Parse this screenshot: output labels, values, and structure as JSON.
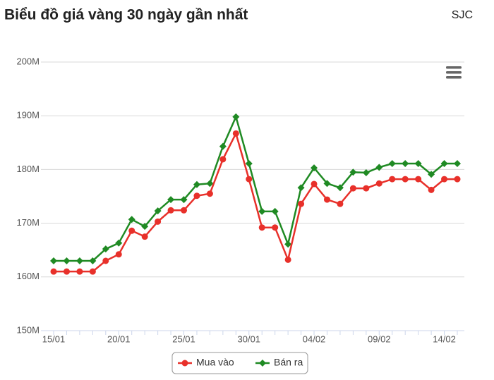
{
  "chart_data": {
    "type": "line",
    "title": "Biểu đồ giá vàng 30 ngày gần nhất",
    "subtitle": "SJC",
    "categories": [
      "15/01",
      null,
      null,
      null,
      null,
      "20/01",
      null,
      null,
      null,
      null,
      "25/01",
      null,
      null,
      null,
      null,
      "30/01",
      null,
      null,
      null,
      null,
      "04/02",
      null,
      null,
      null,
      null,
      "09/02",
      null,
      null,
      null,
      null,
      "14/02",
      null
    ],
    "series": [
      {
        "name": "Mua vào",
        "color": "#e8302a",
        "marker": "circle",
        "values": [
          161,
          161,
          161,
          161,
          163,
          164.2,
          168.6,
          167.5,
          170.3,
          172.4,
          172.4,
          175.1,
          175.5,
          181.9,
          186.7,
          178.2,
          169.2,
          169.2,
          163.2,
          173.6,
          177.3,
          174.4,
          173.6,
          176.5,
          176.5,
          177.4,
          178.2,
          178.2,
          178.2,
          176.2,
          178.2,
          178.2
        ]
      },
      {
        "name": "Bán ra",
        "color": "#1f8a23",
        "marker": "diamond",
        "values": [
          163,
          163,
          163,
          163,
          165.2,
          166.3,
          170.7,
          169.4,
          172.3,
          174.4,
          174.4,
          177.2,
          177.4,
          184.3,
          189.8,
          181.1,
          172.2,
          172.2,
          166.1,
          176.6,
          180.3,
          177.4,
          176.6,
          179.5,
          179.4,
          180.4,
          181.1,
          181.1,
          181.1,
          179.1,
          181.1,
          181.1
        ]
      }
    ],
    "ylim": [
      150,
      200
    ],
    "yticks": [
      {
        "value": 150,
        "label": "150M"
      },
      {
        "value": 160,
        "label": "160M"
      },
      {
        "value": 170,
        "label": "170M"
      },
      {
        "value": 180,
        "label": "180M"
      },
      {
        "value": 190,
        "label": "190M"
      },
      {
        "value": 200,
        "label": "200M"
      }
    ],
    "grid": true,
    "legend": "bottom"
  }
}
